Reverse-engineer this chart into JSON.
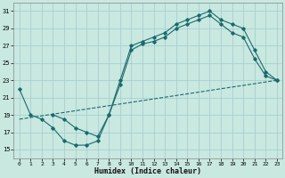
{
  "xlabel": "Humidex (Indice chaleur)",
  "xlim": [
    -0.5,
    23.5
  ],
  "ylim": [
    14,
    32
  ],
  "yticks": [
    15,
    17,
    19,
    21,
    23,
    25,
    27,
    29,
    31
  ],
  "xticks": [
    0,
    1,
    2,
    3,
    4,
    5,
    6,
    7,
    8,
    9,
    10,
    11,
    12,
    13,
    14,
    15,
    16,
    17,
    18,
    19,
    20,
    21,
    22,
    23
  ],
  "bg_color": "#c8e8e0",
  "grid_color": "#a0cccc",
  "line_color": "#1a6b6b",
  "line1_x": [
    0,
    1,
    2,
    3,
    4,
    5,
    6,
    7,
    8,
    9,
    10,
    11,
    12,
    13,
    14,
    15,
    16,
    17,
    18,
    19,
    20,
    21,
    22,
    23
  ],
  "line1_y": [
    22.0,
    19.0,
    18.5,
    17.5,
    16.0,
    15.5,
    15.5,
    16.0,
    19.0,
    23.0,
    27.0,
    27.5,
    28.0,
    28.5,
    29.5,
    30.0,
    30.5,
    31.0,
    30.0,
    29.5,
    29.0,
    26.5,
    24.0,
    23.0
  ],
  "line2_x": [
    0,
    23
  ],
  "line2_y": [
    18.5,
    23.0
  ],
  "line3_x": [
    3,
    4,
    5,
    6,
    7,
    8,
    9,
    10,
    11,
    12,
    13,
    14,
    15,
    16,
    17,
    18,
    19,
    20,
    21,
    22,
    23
  ],
  "line3_y": [
    19.0,
    18.5,
    17.5,
    17.0,
    16.5,
    19.0,
    22.5,
    26.5,
    27.2,
    27.5,
    28.0,
    29.0,
    29.5,
    30.0,
    30.5,
    29.5,
    28.5,
    28.0,
    25.5,
    23.5,
    23.0
  ]
}
